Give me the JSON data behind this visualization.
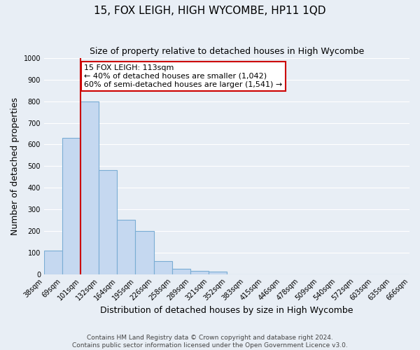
{
  "title": "15, FOX LEIGH, HIGH WYCOMBE, HP11 1QD",
  "subtitle": "Size of property relative to detached houses in High Wycombe",
  "xlabel": "Distribution of detached houses by size in High Wycombe",
  "ylabel": "Number of detached properties",
  "bar_values": [
    110,
    630,
    800,
    480,
    250,
    200,
    60,
    25,
    15,
    10,
    0,
    0,
    0,
    0,
    0,
    0,
    0,
    0,
    0,
    0
  ],
  "bar_labels": [
    "38sqm",
    "69sqm",
    "101sqm",
    "132sqm",
    "164sqm",
    "195sqm",
    "226sqm",
    "258sqm",
    "289sqm",
    "321sqm",
    "352sqm",
    "383sqm",
    "415sqm",
    "446sqm",
    "478sqm",
    "509sqm",
    "540sqm",
    "572sqm",
    "603sqm",
    "635sqm",
    "666sqm"
  ],
  "n_bars": 20,
  "bar_color": "#c5d8f0",
  "bar_edge_color": "#7aadd4",
  "bar_edge_width": 0.8,
  "property_line_x": 2.0,
  "property_line_color": "#cc0000",
  "ylim": [
    0,
    1000
  ],
  "yticks": [
    0,
    100,
    200,
    300,
    400,
    500,
    600,
    700,
    800,
    900,
    1000
  ],
  "annotation_text": "15 FOX LEIGH: 113sqm\n← 40% of detached houses are smaller (1,042)\n60% of semi-detached houses are larger (1,541) →",
  "annotation_box_color": "#ffffff",
  "annotation_box_edge": "#cc0000",
  "footer_line1": "Contains HM Land Registry data © Crown copyright and database right 2024.",
  "footer_line2": "Contains public sector information licensed under the Open Government Licence v3.0.",
  "background_color": "#e8eef5",
  "grid_color": "#ffffff",
  "title_fontsize": 11,
  "subtitle_fontsize": 9,
  "axis_label_fontsize": 9,
  "tick_fontsize": 7,
  "annotation_fontsize": 8,
  "footer_fontsize": 6.5
}
